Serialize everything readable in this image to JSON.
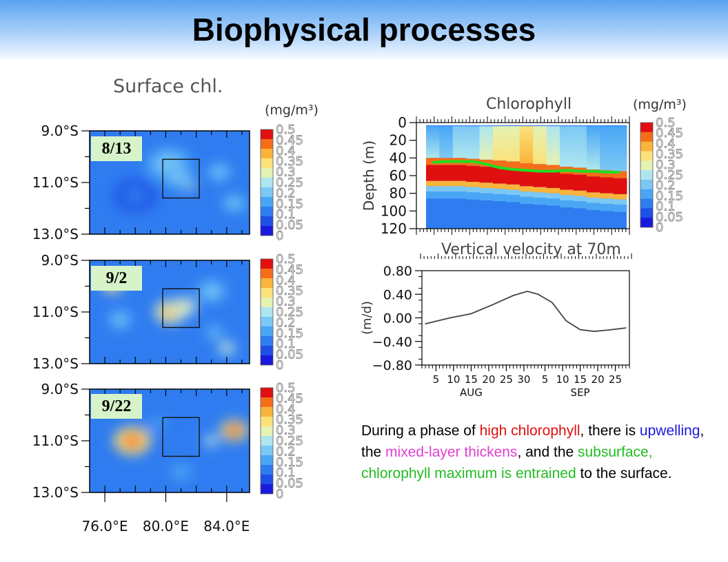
{
  "slide_title": "Biophysical processes",
  "colors": {
    "header_top": "#5aa3f2",
    "date_box": "#d7f3c9",
    "mld_line": "#22dd22",
    "high_chl": "#e01010",
    "upwelling": "#1a1adc",
    "mixed_layer": "#e040d0",
    "subsurface": "#22bb22"
  },
  "chart_data": [
    {
      "type": "heatmap",
      "title": "Surface chl.",
      "units": "(mg/m³)",
      "colorbar_ticks": [
        "0.5",
        "0.45",
        "0.4",
        "0.35",
        "0.3",
        "0.25",
        "0.2",
        "0.15",
        "0.1",
        "0.05",
        "0"
      ],
      "yticks": [
        "9.0°S",
        "11.0°S",
        "13.0°S"
      ],
      "xticks": [
        "76.0°E",
        "80.0°E",
        "84.0°E"
      ],
      "lon_range": [
        75.0,
        85.5
      ],
      "lat_range": [
        -13.0,
        -9.0
      ],
      "box": {
        "lon": [
          79.8,
          82.2
        ],
        "lat": [
          -11.6,
          -10.1
        ]
      },
      "panels": [
        {
          "date": "8/13",
          "features": [
            {
              "lon": 80.2,
              "lat": -10.3,
              "value": 0.2,
              "r": 1.5
            },
            {
              "lon": 81.5,
              "lat": -11.1,
              "value": 0.32,
              "r": 0.4
            },
            {
              "lon": 80.8,
              "lat": -10.8,
              "value": 0.22,
              "r": 1.0
            },
            {
              "lon": 83.5,
              "lat": -10.6,
              "value": 0.22,
              "r": 0.8
            },
            {
              "lon": 84.5,
              "lat": -11.8,
              "value": 0.2,
              "r": 0.8
            },
            {
              "lon": 78.0,
              "lat": -11.5,
              "value": 0.12,
              "r": 1.4
            }
          ]
        },
        {
          "date": "9/2",
          "features": [
            {
              "lon": 76.5,
              "lat": -10.0,
              "value": 0.38,
              "r": 0.6
            },
            {
              "lon": 77.0,
              "lat": -11.3,
              "value": 0.22,
              "r": 0.8
            },
            {
              "lon": 80.3,
              "lat": -11.0,
              "value": 0.4,
              "r": 1.0
            },
            {
              "lon": 81.2,
              "lat": -10.8,
              "value": 0.35,
              "r": 0.8
            },
            {
              "lon": 83.0,
              "lat": -10.2,
              "value": 0.22,
              "r": 1.0
            },
            {
              "lon": 84.0,
              "lat": -12.4,
              "value": 0.3,
              "r": 0.6
            },
            {
              "lon": 83.2,
              "lat": -11.8,
              "value": 0.2,
              "r": 0.6
            }
          ]
        },
        {
          "date": "9/22",
          "features": [
            {
              "lon": 77.8,
              "lat": -11.0,
              "value": 0.45,
              "r": 1.2
            },
            {
              "lon": 84.5,
              "lat": -10.6,
              "value": 0.48,
              "r": 0.9
            },
            {
              "lon": 83.0,
              "lat": -11.0,
              "value": 0.3,
              "r": 0.5
            },
            {
              "lon": 81.0,
              "lat": -12.2,
              "value": 0.18,
              "r": 1.2
            },
            {
              "lon": 79.5,
              "lat": -10.3,
              "value": 0.16,
              "r": 0.8
            }
          ]
        }
      ]
    },
    {
      "type": "heatmap",
      "title": "Chlorophyll",
      "units": "(mg/m³)",
      "ylabel": "Depth (m)",
      "yticks": [
        "0",
        "20",
        "40",
        "60",
        "80",
        "100",
        "120"
      ],
      "ylim": [
        0,
        120
      ],
      "colorbar_ticks": [
        "0.5",
        "0.45",
        "0.4",
        "0.35",
        "0.3",
        "0.25",
        "0.2",
        "0.15",
        "0.1",
        "0.05",
        "0"
      ],
      "surface_profile": [
        0.18,
        0.16,
        0.2,
        0.22,
        0.24,
        0.28,
        0.3,
        0.32,
        0.28,
        0.24,
        0.22,
        0.2,
        0.18,
        0.16,
        0.15
      ],
      "chl_max_depth": [
        62,
        62,
        62,
        63,
        64,
        65,
        66,
        68,
        69,
        70,
        72,
        73,
        75,
        76,
        77
      ],
      "mixed_layer_depth": [
        45,
        44,
        44,
        44,
        47,
        51,
        53,
        54,
        55,
        55,
        54,
        55,
        55,
        56,
        56
      ]
    },
    {
      "type": "line",
      "title": "Vertical velocity at 70m",
      "ylabel": "(m/d)",
      "yticks": [
        "0.80",
        "0.40",
        "0.00",
        "−0.40",
        "−0.80"
      ],
      "ylim": [
        -0.8,
        0.8
      ],
      "xticks": [
        "5",
        "10",
        "15",
        "20",
        "25",
        "30",
        "5",
        "10",
        "15",
        "20",
        "25"
      ],
      "month_labels": [
        "AUG",
        "SEP"
      ],
      "x": [
        1,
        8,
        14,
        20,
        26,
        30,
        33,
        37,
        41,
        45,
        49,
        54,
        58
      ],
      "values": [
        -0.1,
        0.0,
        0.07,
        0.22,
        0.38,
        0.45,
        0.4,
        0.26,
        -0.05,
        -0.2,
        -0.23,
        -0.2,
        -0.17
      ]
    }
  ],
  "caption_parts": [
    {
      "text": "During a phase of ",
      "color": "#000000"
    },
    {
      "text": "high chlorophyll",
      "color": "#e01010"
    },
    {
      "text": ", there is ",
      "color": "#000000"
    },
    {
      "text": "upwelling",
      "color": "#1a1adc"
    },
    {
      "text": ", the ",
      "color": "#000000"
    },
    {
      "text": "mixed-layer thickens",
      "color": "#e040d0"
    },
    {
      "text": ", and the ",
      "color": "#000000"
    },
    {
      "text": "subsurface, chlorophyll maximum is entrained",
      "color": "#22bb22"
    },
    {
      "text": " to the surface.",
      "color": "#000000"
    }
  ]
}
